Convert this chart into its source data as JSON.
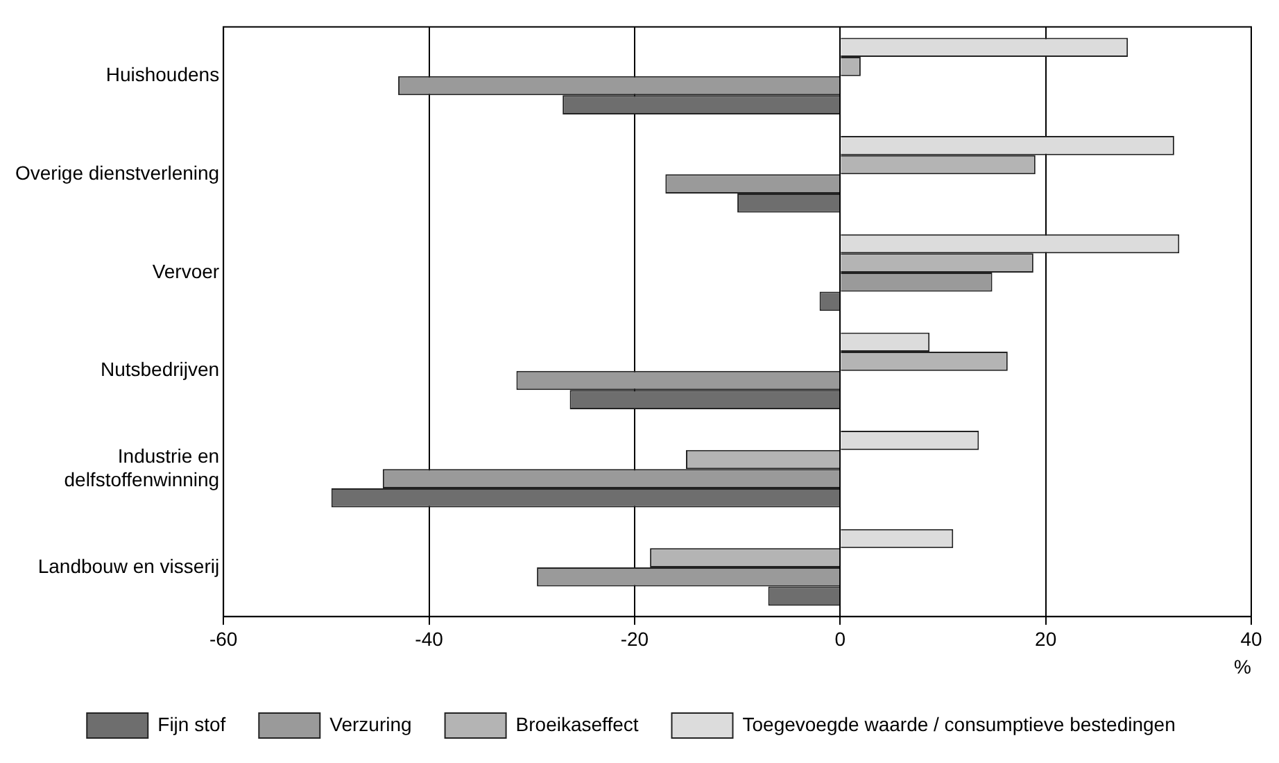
{
  "chart_data": {
    "type": "bar",
    "orientation": "horizontal",
    "xlabel": "%",
    "categories": [
      "Huishoudens",
      "Overige dienstverlening",
      "Vervoer",
      "Nutsbedrijven",
      "Industrie en delfstoffenwinning",
      "Landbouw en visserij"
    ],
    "series": [
      {
        "name": "Toegevoegde waarde / consumptieve bestedingen",
        "color": "#dcdcdc",
        "values": [
          28,
          32.5,
          33,
          8.7,
          13.5,
          11
        ]
      },
      {
        "name": "Broeikaseffect",
        "color": "#b4b4b4",
        "values": [
          2,
          19,
          18.8,
          16.3,
          -15,
          -18.5
        ]
      },
      {
        "name": "Verzuring",
        "color": "#9a9a9a",
        "values": [
          -43,
          -17,
          14.8,
          -31.5,
          -44.5,
          -29.5
        ]
      },
      {
        "name": "Fijn stof",
        "color": "#6e6e6e",
        "values": [
          -27,
          -10,
          -2,
          -26.3,
          -49.5,
          -7
        ]
      }
    ],
    "xlim": [
      -60,
      40
    ],
    "xticks": [
      -60,
      -40,
      -20,
      0,
      20,
      40
    ],
    "grid": "x",
    "legend": "bottom"
  }
}
